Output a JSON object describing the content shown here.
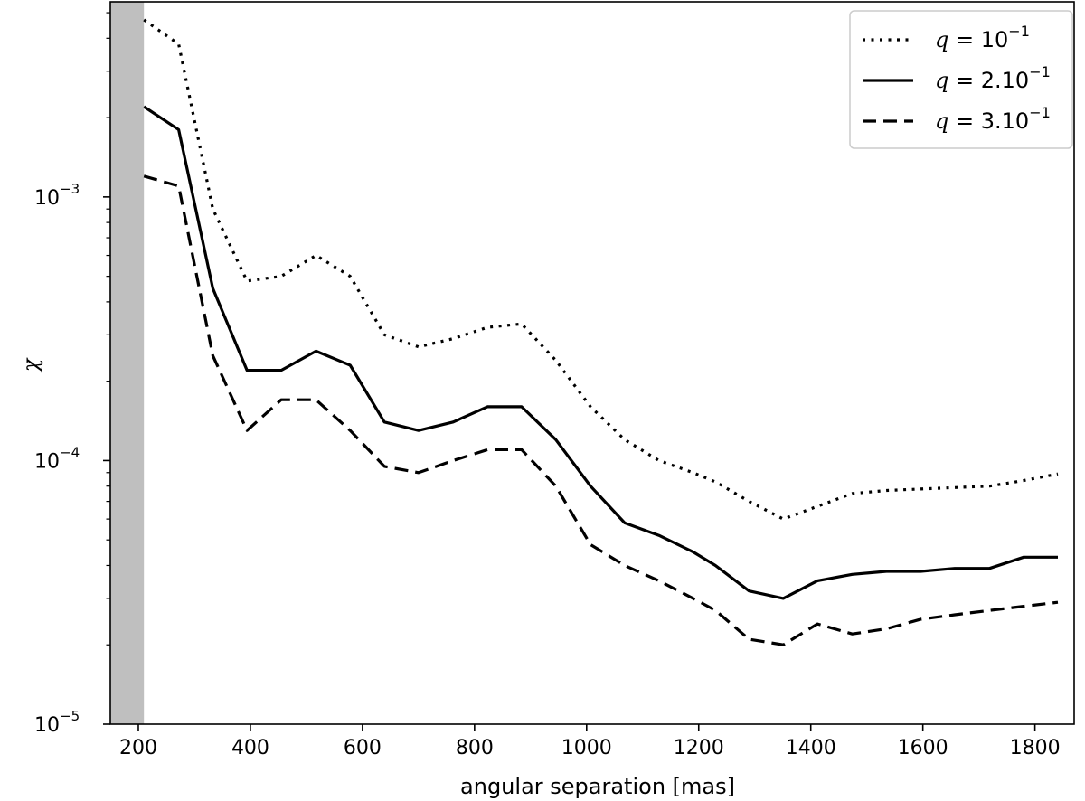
{
  "chart_data": {
    "type": "line",
    "title": "",
    "xlabel": "angular separation [mas]",
    "ylabel": "χ",
    "xlim": [
      150,
      1870
    ],
    "ylim": [
      1e-05,
      0.0055
    ],
    "yscale": "log",
    "grid": false,
    "legend_position": "top-right",
    "shaded_region": {
      "x_range": [
        150,
        210
      ],
      "color": "#bfbfbf"
    },
    "x_ticks": [
      {
        "value": 200,
        "label": "200"
      },
      {
        "value": 400,
        "label": "400"
      },
      {
        "value": 600,
        "label": "600"
      },
      {
        "value": 800,
        "label": "800"
      },
      {
        "value": 1000,
        "label": "1000"
      },
      {
        "value": 1200,
        "label": "1200"
      },
      {
        "value": 1400,
        "label": "1400"
      },
      {
        "value": 1600,
        "label": "1600"
      },
      {
        "value": 1800,
        "label": "1800"
      }
    ],
    "y_ticks": [
      {
        "value": 1e-05,
        "base": "10",
        "exp": "−5"
      },
      {
        "value": 0.0001,
        "base": "10",
        "exp": "−4"
      },
      {
        "value": 0.001,
        "base": "10",
        "exp": "−3"
      }
    ],
    "series": [
      {
        "name": "q = 10^-1",
        "legend": {
          "prefix": "q",
          "eq": " = ",
          "base": "10",
          "exp": "−1"
        },
        "style": "dotted",
        "x": [
          210,
          272,
          333,
          394,
          455,
          517,
          578,
          639,
          700,
          762,
          823,
          884,
          945,
          1007,
          1068,
          1129,
          1190,
          1230,
          1290,
          1351,
          1412,
          1474,
          1535,
          1596,
          1657,
          1719,
          1780,
          1841
        ],
        "y": [
          0.0047,
          0.0038,
          0.0009,
          0.00048,
          0.0005,
          0.0006,
          0.0005,
          0.0003,
          0.00027,
          0.00029,
          0.00032,
          0.00033,
          0.00024,
          0.00016,
          0.00012,
          0.0001,
          9e-05,
          8.3e-05,
          7e-05,
          6e-05,
          6.7e-05,
          7.5e-05,
          7.7e-05,
          7.8e-05,
          7.9e-05,
          8e-05,
          8.4e-05,
          8.9e-05
        ]
      },
      {
        "name": "q = 2.10^-1",
        "legend": {
          "prefix": "q",
          "eq": " = 2.",
          "base": "10",
          "exp": "−1"
        },
        "style": "solid",
        "x": [
          210,
          272,
          333,
          394,
          455,
          517,
          578,
          639,
          700,
          762,
          823,
          884,
          945,
          1007,
          1068,
          1129,
          1190,
          1230,
          1290,
          1351,
          1412,
          1474,
          1535,
          1596,
          1657,
          1719,
          1780,
          1841
        ],
        "y": [
          0.0022,
          0.0018,
          0.00045,
          0.00022,
          0.00022,
          0.00026,
          0.00023,
          0.00014,
          0.00013,
          0.00014,
          0.00016,
          0.00016,
          0.00012,
          8e-05,
          5.8e-05,
          5.2e-05,
          4.5e-05,
          4e-05,
          3.2e-05,
          3e-05,
          3.5e-05,
          3.7e-05,
          3.8e-05,
          3.8e-05,
          3.9e-05,
          3.9e-05,
          4.3e-05,
          4.3e-05
        ]
      },
      {
        "name": "q = 3.10^-1",
        "legend": {
          "prefix": "q",
          "eq": " = 3.",
          "base": "10",
          "exp": "−1"
        },
        "style": "dashed",
        "x": [
          210,
          272,
          333,
          394,
          455,
          517,
          578,
          639,
          700,
          762,
          823,
          884,
          945,
          1007,
          1068,
          1129,
          1190,
          1230,
          1290,
          1351,
          1412,
          1474,
          1535,
          1596,
          1657,
          1719,
          1780,
          1841
        ],
        "y": [
          0.0012,
          0.0011,
          0.00025,
          0.00013,
          0.00017,
          0.00017,
          0.00013,
          9.5e-05,
          9e-05,
          0.0001,
          0.00011,
          0.00011,
          8e-05,
          4.8e-05,
          4e-05,
          3.5e-05,
          3e-05,
          2.7e-05,
          2.1e-05,
          2e-05,
          2.4e-05,
          2.2e-05,
          2.3e-05,
          2.5e-05,
          2.6e-05,
          2.7e-05,
          2.8e-05,
          2.9e-05
        ]
      }
    ]
  }
}
